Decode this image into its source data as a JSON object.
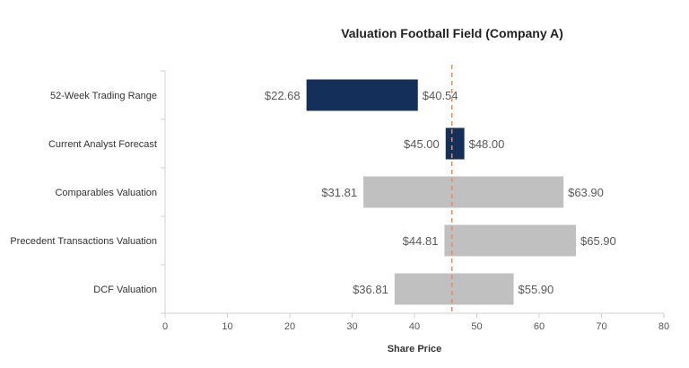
{
  "chart_data": {
    "type": "bar",
    "orientation": "horizontal-floating",
    "title": "Valuation Football Field (Company A)",
    "xlabel": "Share Price",
    "ylabel": "",
    "xlim": [
      0,
      80
    ],
    "xticks": [
      0,
      10,
      20,
      30,
      40,
      50,
      60,
      70,
      80
    ],
    "grid": false,
    "categories": [
      "52-Week Trading Range",
      "Current Analyst Forecast",
      "Comparables Valuation",
      "Precedent Transactions Valuation",
      "DCF Valuation"
    ],
    "low": [
      22.68,
      45.0,
      31.81,
      44.81,
      36.81
    ],
    "high": [
      40.54,
      48.0,
      63.9,
      65.9,
      55.9
    ],
    "low_labels": [
      "$22.68",
      "$45.00",
      "$31.81",
      "$44.81",
      "$36.81"
    ],
    "high_labels": [
      "$40.54",
      "$48.00",
      "$63.90",
      "$65.90",
      "$55.90"
    ],
    "bar_colors": [
      "#14305a",
      "#14305a",
      "#c0c0c0",
      "#c0c0c0",
      "#c0c0c0"
    ],
    "reference_line": {
      "value": 46,
      "color": "#ee8a55",
      "style": "dashed"
    }
  }
}
